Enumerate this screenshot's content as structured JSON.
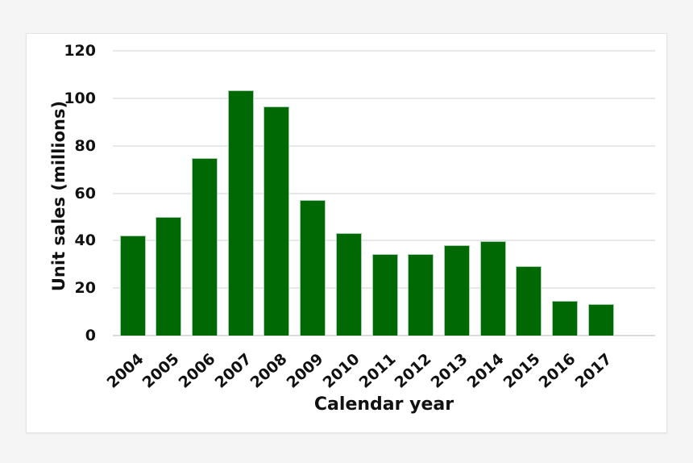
{
  "chart_data": {
    "type": "bar",
    "title": "",
    "xlabel": "Calendar year",
    "ylabel": "Unit sales (millions)",
    "categories": [
      "2004",
      "2005",
      "2006",
      "2007",
      "2008",
      "2009",
      "2010",
      "2011",
      "2012",
      "2013",
      "2014",
      "2015",
      "2016",
      "2017"
    ],
    "values": [
      42,
      50,
      74.8,
      103.4,
      96.6,
      57.1,
      43.1,
      34.3,
      34.2,
      38.2,
      39.9,
      29.2,
      14.6,
      13.4
    ],
    "ylim": [
      0,
      120
    ],
    "yticks": [
      0,
      20,
      40,
      60,
      80,
      100,
      120
    ],
    "grid": true,
    "legend_position": "none",
    "x_tick_rotation_deg": 42,
    "bar_color": "#016903",
    "bar_edge_color": "#a6cfb0"
  },
  "colors": {
    "page_background": "#f5f5f6",
    "card_background": "#ffffff",
    "card_border": "#e4e4e6",
    "gridline": "#e8e8e8",
    "baseline": "#dbdbdb",
    "text": "#111111"
  }
}
